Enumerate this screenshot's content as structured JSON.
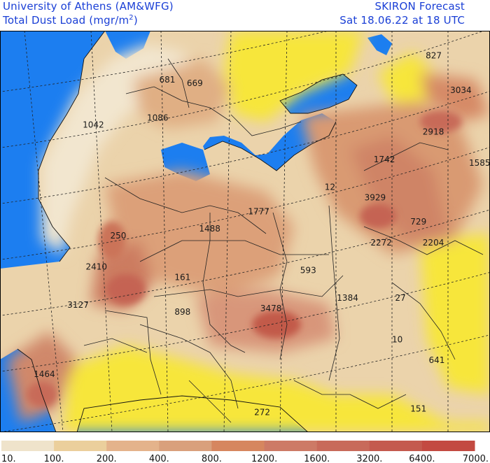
{
  "header": {
    "org": "University of Athens (AM&WFG)",
    "field": "Total Dust Load (mgr/m",
    "field_sup": "2",
    "field_close": ")",
    "product": "SKIRON Forecast",
    "valid_time": "Sat 18.06.22 at 18 UTC"
  },
  "map": {
    "colors": {
      "sea": "#1c7ef0",
      "no_dust": "#f7e63a",
      "border": "#222222",
      "graticule": "#222222"
    },
    "values": [
      {
        "text": "827",
        "lon": 49.5,
        "lat": 54.0
      },
      {
        "text": "3034",
        "lon": 53.5,
        "lat": 49.0
      },
      {
        "text": "681",
        "lon": 6.0,
        "lat": 50.5
      },
      {
        "text": "669",
        "lon": 10.5,
        "lat": 50.0
      },
      {
        "text": "1042",
        "lon": -6.5,
        "lat": 44.0
      },
      {
        "text": "1086",
        "lon": 4.0,
        "lat": 45.0
      },
      {
        "text": "2918",
        "lon": 49.0,
        "lat": 43.0
      },
      {
        "text": "1742",
        "lon": 41.0,
        "lat": 39.0
      },
      {
        "text": "1585",
        "lon": 57.5,
        "lat": 38.5
      },
      {
        "text": "12",
        "lon": 33.0,
        "lat": 35.0
      },
      {
        "text": "3929",
        "lon": 39.5,
        "lat": 33.5
      },
      {
        "text": "729",
        "lon": 47.0,
        "lat": 30.0
      },
      {
        "text": "1777",
        "lon": 20.5,
        "lat": 31.5
      },
      {
        "text": "1488",
        "lon": 12.5,
        "lat": 29.0
      },
      {
        "text": "2272",
        "lon": 40.5,
        "lat": 27.0
      },
      {
        "text": "2204",
        "lon": 49.0,
        "lat": 27.0
      },
      {
        "text": "250",
        "lon": -2.0,
        "lat": 28.0
      },
      {
        "text": "593",
        "lon": 29.0,
        "lat": 23.0
      },
      {
        "text": "2410",
        "lon": -6.0,
        "lat": 23.5
      },
      {
        "text": "161",
        "lon": 8.5,
        "lat": 22.0
      },
      {
        "text": "27",
        "lon": 44.5,
        "lat": 19.0
      },
      {
        "text": "3127",
        "lon": -9.0,
        "lat": 18.0
      },
      {
        "text": "898",
        "lon": 8.5,
        "lat": 17.0
      },
      {
        "text": "3478",
        "lon": 22.5,
        "lat": 17.5
      },
      {
        "text": "1384",
        "lon": 35.0,
        "lat": 19.0
      },
      {
        "text": "10",
        "lon": 44.0,
        "lat": 13.0
      },
      {
        "text": "641",
        "lon": 50.0,
        "lat": 10.0
      },
      {
        "text": "1464",
        "lon": -14.5,
        "lat": 8.0
      },
      {
        "text": "151",
        "lon": 47.0,
        "lat": 3.0
      },
      {
        "text": "272",
        "lon": 21.5,
        "lat": 2.5
      }
    ]
  },
  "legend": {
    "colors": [
      "#efe3cb",
      "#ebcf9c",
      "#e4b38b",
      "#d9a07c",
      "#d6865f",
      "#cd7a66",
      "#c86a5a",
      "#c45a4e",
      "#c34a41"
    ],
    "labels": [
      "10.",
      "100.",
      "200.",
      "400.",
      "800.",
      "1200.",
      "1600.",
      "3200.",
      "6400.",
      "7000."
    ]
  }
}
